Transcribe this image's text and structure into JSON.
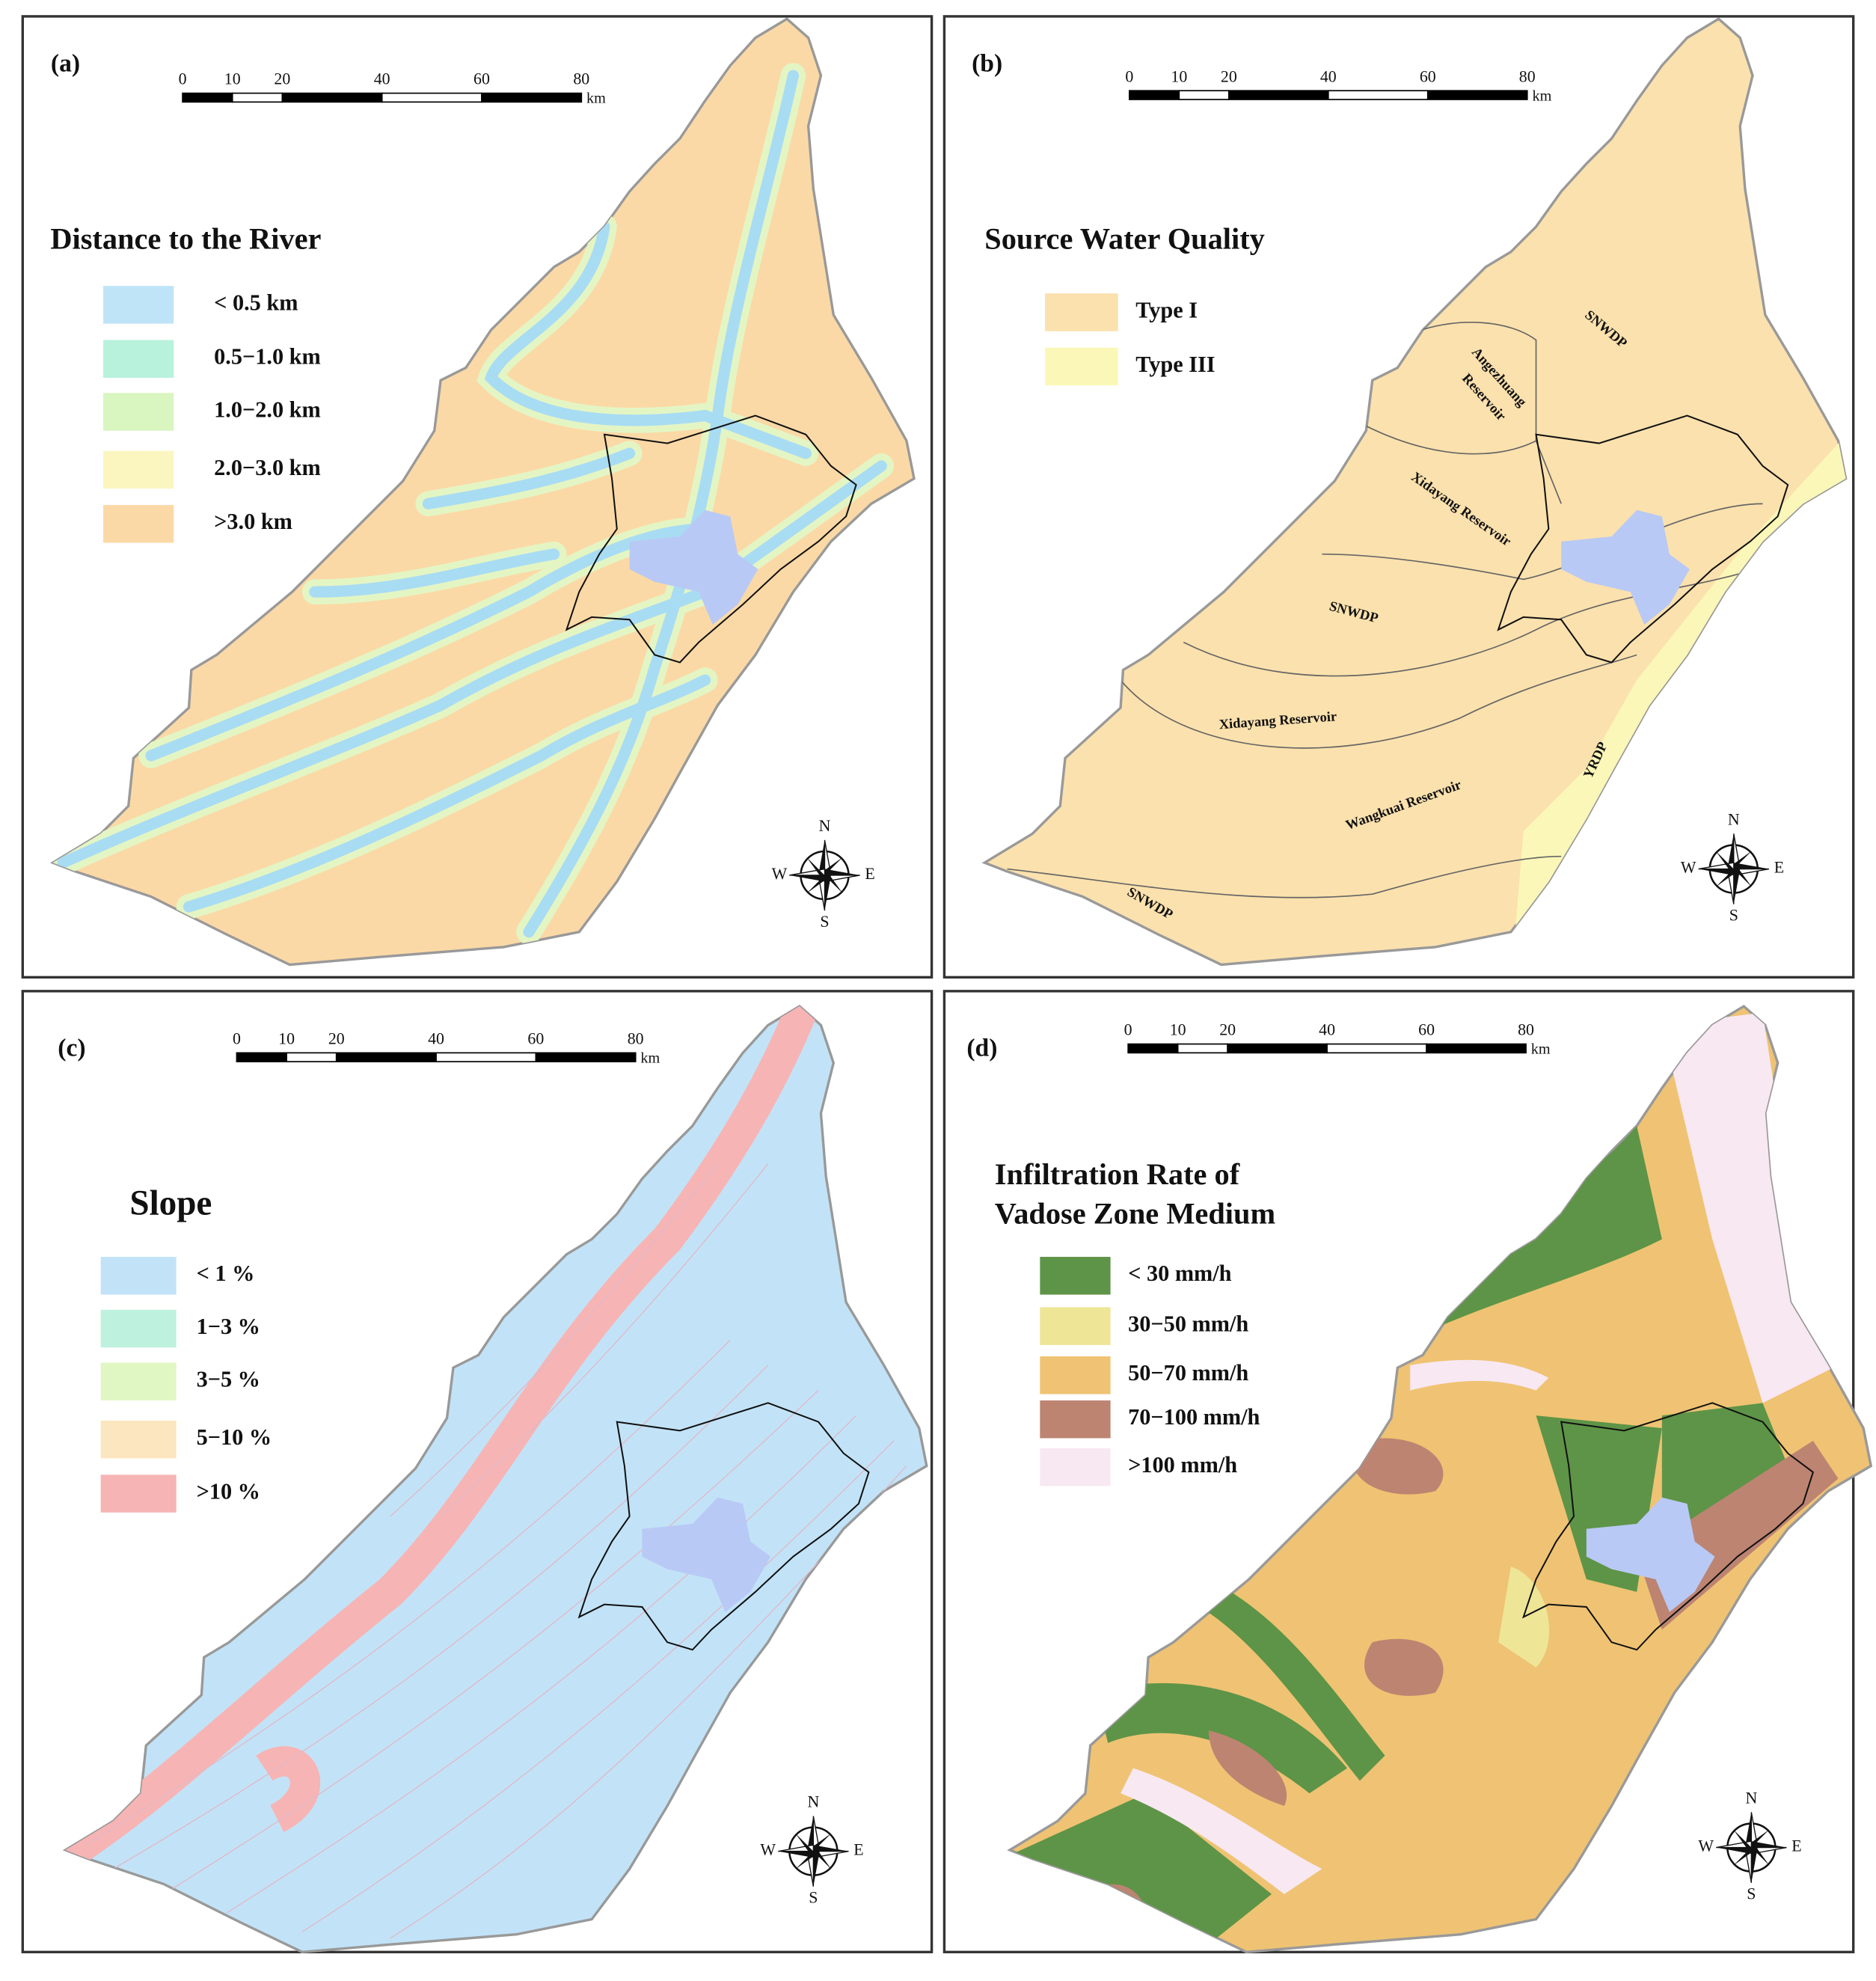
{
  "panels": [
    {
      "label": "(a)",
      "scale_bar": {
        "ticks": [
          0,
          10,
          20,
          40,
          60,
          80
        ],
        "unit": "km"
      },
      "legend": {
        "title_lines": [
          "Distance to the River"
        ],
        "items": [
          {
            "label": "< 0.5 km",
            "color": "#bfe4f8"
          },
          {
            "label": "0.5−1.0 km",
            "color": "#b8f2dc"
          },
          {
            "label": "1.0−2.0 km",
            "color": "#d9f5c0"
          },
          {
            "label": "2.0−3.0 km",
            "color": "#fbf6c0"
          },
          {
            "label": ">3.0 km",
            "color": "#fbd9a6"
          }
        ]
      },
      "compass": {
        "n": "N",
        "e": "E",
        "s": "S",
        "w": "W"
      }
    },
    {
      "label": "(b)",
      "scale_bar": {
        "ticks": [
          0,
          10,
          20,
          40,
          60,
          80
        ],
        "unit": "km"
      },
      "legend": {
        "title_lines": [
          "Source Water Quality"
        ],
        "items": [
          {
            "label": "Type I",
            "color": "#fbe1ad"
          },
          {
            "label": "Type III",
            "color": "#fbf7b8"
          }
        ]
      },
      "annotations": [
        "SNWDP",
        "Angezhuang",
        "Reservoir",
        "Xidayang Reservoir",
        "SNWDP",
        "Xidayang Reservoir",
        "Wangkuai Reservoir",
        "YRDP",
        "SNWDP"
      ],
      "compass": {
        "n": "N",
        "e": "E",
        "s": "S",
        "w": "W"
      }
    },
    {
      "label": "(c)",
      "scale_bar": {
        "ticks": [
          0,
          10,
          20,
          40,
          60,
          80
        ],
        "unit": "km"
      },
      "legend": {
        "title_lines": [
          "Slope"
        ],
        "items": [
          {
            "label": "< 1 %",
            "color": "#c2e3f7"
          },
          {
            "label": "1−3 %",
            "color": "#bff2de"
          },
          {
            "label": "3−5 %",
            "color": "#e0f7c4"
          },
          {
            "label": "5−10 %",
            "color": "#fce6bf"
          },
          {
            "label": ">10 %",
            "color": "#f7b4b4"
          }
        ]
      },
      "compass": {
        "n": "N",
        "e": "E",
        "s": "S",
        "w": "W"
      }
    },
    {
      "label": "(d)",
      "scale_bar": {
        "ticks": [
          0,
          10,
          20,
          40,
          60,
          80
        ],
        "unit": "km"
      },
      "legend": {
        "title_lines": [
          "Infiltration Rate of",
          "Vadose Zone Medium"
        ],
        "items": [
          {
            "label": "< 30 mm/h",
            "color": "#5e9447"
          },
          {
            "label": "30−50 mm/h",
            "color": "#eee597"
          },
          {
            "label": "50−70 mm/h",
            "color": "#efc373"
          },
          {
            "label": "70−100 mm/h",
            "color": "#bd8472"
          },
          {
            "label": ">100 mm/h",
            "color": "#f8e8f2"
          }
        ]
      },
      "compass": {
        "n": "N",
        "e": "E",
        "s": "S",
        "w": "W"
      }
    }
  ]
}
